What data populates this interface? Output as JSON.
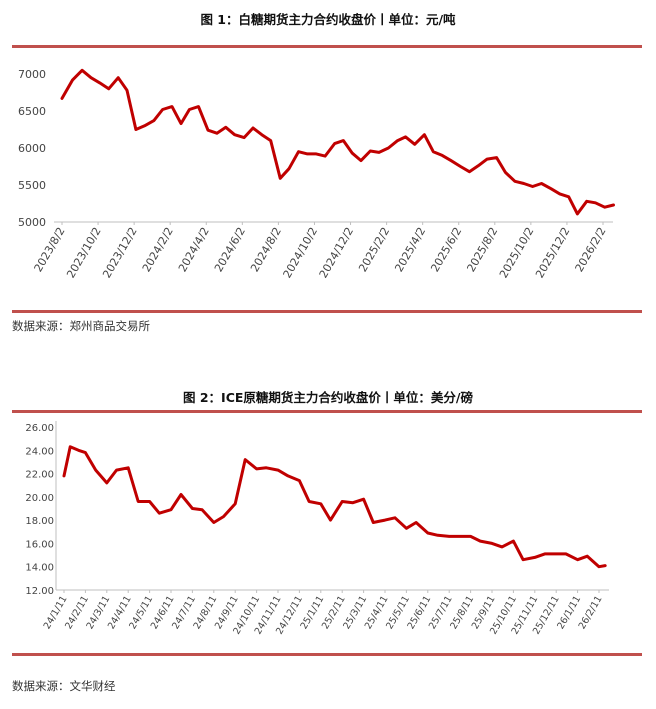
{
  "chart_data": [
    {
      "type": "line",
      "title": "图 1：白糖期货主力合约收盘价丨单位：元/吨",
      "source": "数据来源：郑州商品交易所",
      "color": "#c00000",
      "ylim": [
        5000,
        7000
      ],
      "y_ticks": [
        "7000",
        "6500",
        "6000",
        "5500",
        "5000"
      ],
      "x_ticks": [
        "2023/8/2",
        "2023/10/2",
        "2023/12/2",
        "2024/2/2",
        "2024/4/2",
        "2024/6/2",
        "2024/8/2",
        "2024/10/2",
        "2024/12/2",
        "2025/2/2",
        "2025/4/2",
        "2025/6/2",
        "2025/8/2",
        "2025/10/2",
        "2025/12/2",
        "2026/2/2"
      ],
      "grid": false,
      "series": [
        {
          "x": [
            "2023/8/2",
            "2023/8/20",
            "2023/9/5",
            "2023/9/20",
            "2023/10/5",
            "2023/10/20",
            "2023/11/5",
            "2023/11/20",
            "2023/12/5",
            "2023/12/20",
            "2024/1/5",
            "2024/1/20",
            "2024/2/5",
            "2024/2/20",
            "2024/3/5",
            "2024/3/20",
            "2024/4/5",
            "2024/4/20",
            "2024/5/5",
            "2024/5/20",
            "2024/6/5",
            "2024/6/20",
            "2024/7/5",
            "2024/7/20",
            "2024/8/5",
            "2024/8/20",
            "2024/9/5",
            "2024/9/20",
            "2024/10/5",
            "2024/10/20",
            "2024/11/5",
            "2024/11/20",
            "2024/12/5",
            "2024/12/20",
            "2025/1/5",
            "2025/1/20",
            "2025/2/5",
            "2025/2/20",
            "2025/3/5",
            "2025/3/20",
            "2025/4/5",
            "2025/4/20",
            "2025/5/5",
            "2025/5/20",
            "2025/6/5",
            "2025/6/20",
            "2025/7/5",
            "2025/7/20",
            "2025/8/5",
            "2025/8/20",
            "2025/9/5",
            "2025/9/20",
            "2025/10/5",
            "2025/10/20",
            "2025/11/5",
            "2025/11/20",
            "2025/12/5",
            "2025/12/20",
            "2026/1/5",
            "2026/1/20",
            "2026/2/5",
            "2026/2/20"
          ],
          "values": [
            6670,
            6920,
            7050,
            6950,
            6880,
            6800,
            6950,
            6780,
            6250,
            6300,
            6370,
            6520,
            6560,
            6330,
            6520,
            6560,
            6240,
            6200,
            6280,
            6180,
            6140,
            6270,
            6180,
            6100,
            5590,
            5720,
            5950,
            5920,
            5920,
            5890,
            6060,
            6100,
            5930,
            5830,
            5960,
            5940,
            6000,
            6100,
            6150,
            6050,
            6180,
            5950,
            5900,
            5830,
            5750,
            5680,
            5760,
            5850,
            5870,
            5670,
            5550,
            5520,
            5480,
            5520,
            5450,
            5380,
            5340,
            5110,
            5280,
            5260,
            5200,
            5230
          ]
        }
      ]
    },
    {
      "type": "line",
      "title": "图 2：ICE原糖期货主力合约收盘价丨单位：美分/磅",
      "source": "数据来源：文华财经",
      "color": "#c00000",
      "ylim": [
        12,
        26
      ],
      "y_ticks": [
        "26.00",
        "24.00",
        "22.00",
        "20.00",
        "18.00",
        "16.00",
        "14.00",
        "12.00"
      ],
      "x_ticks": [
        "24/1/11",
        "24/2/11",
        "24/3/11",
        "24/4/11",
        "24/5/11",
        "24/6/11",
        "24/7/11",
        "24/8/11",
        "24/9/11",
        "24/10/11",
        "24/11/11",
        "24/12/11",
        "25/1/11",
        "25/2/11",
        "25/3/11",
        "25/4/11",
        "25/5/11",
        "25/6/11",
        "25/7/11",
        "25/8/11",
        "25/9/11",
        "25/10/11",
        "25/11/11",
        "25/12/11",
        "26/1/11",
        "26/2/11"
      ],
      "grid": false,
      "series": [
        {
          "x": [
            "24/1/11",
            "24/1/20",
            "24/2/1",
            "24/2/11",
            "24/2/25",
            "24/3/11",
            "24/3/25",
            "24/4/11",
            "24/4/25",
            "24/5/11",
            "24/5/25",
            "24/6/11",
            "24/6/25",
            "24/7/11",
            "24/7/25",
            "24/8/11",
            "24/8/25",
            "24/9/11",
            "24/9/25",
            "24/10/11",
            "24/10/25",
            "24/11/11",
            "24/11/25",
            "24/12/11",
            "24/12/25",
            "25/1/11",
            "25/1/25",
            "25/2/11",
            "25/2/25",
            "25/3/11",
            "25/3/25",
            "25/4/11",
            "25/4/25",
            "25/5/11",
            "25/5/25",
            "25/6/11",
            "25/6/25",
            "25/7/11",
            "25/7/25",
            "25/8/11",
            "25/8/25",
            "25/9/11",
            "25/9/25",
            "25/10/11",
            "25/10/25",
            "25/11/11",
            "25/11/25",
            "25/12/11",
            "25/12/25",
            "26/1/11",
            "26/1/25",
            "26/2/11",
            "26/2/20"
          ],
          "values": [
            21.8,
            24.3,
            24.0,
            23.8,
            22.3,
            21.2,
            22.3,
            22.5,
            19.6,
            19.6,
            18.6,
            18.9,
            20.2,
            19.0,
            18.9,
            17.8,
            18.3,
            19.4,
            23.2,
            22.4,
            22.5,
            22.3,
            21.8,
            21.4,
            19.6,
            19.4,
            18.0,
            19.6,
            19.5,
            19.8,
            17.8,
            18.0,
            18.2,
            17.3,
            17.8,
            16.9,
            16.7,
            16.6,
            16.6,
            16.6,
            16.2,
            16.0,
            15.7,
            16.2,
            14.6,
            14.8,
            15.1,
            15.1,
            15.1,
            14.6,
            14.9,
            14.0,
            14.1
          ]
        }
      ]
    }
  ]
}
